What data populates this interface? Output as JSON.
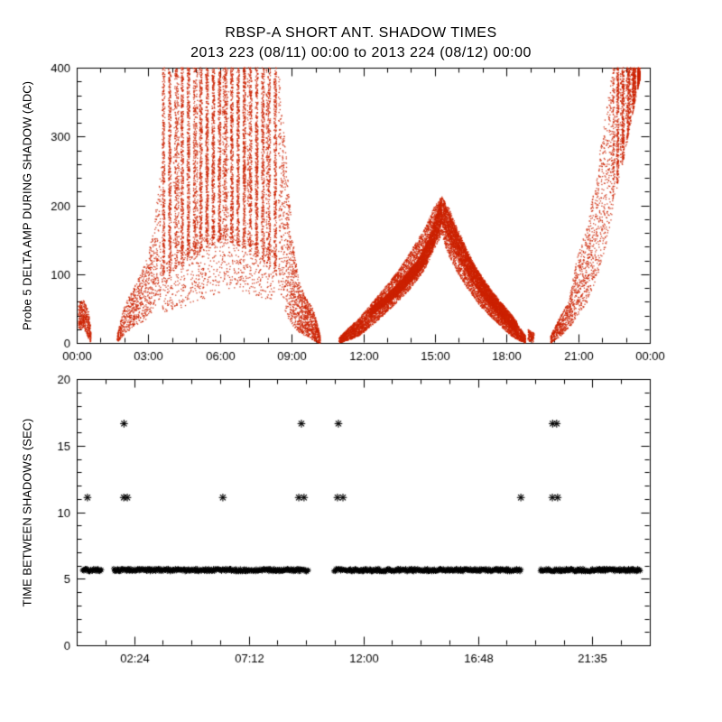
{
  "title": {
    "line1": "RBSP-A SHORT ANT. SHADOW TIMES",
    "line2": "2013 223 (08/11) 00:00 to 2013 224 (08/12) 00:00"
  },
  "colors": {
    "background": "#ffffff",
    "axis": "#000000",
    "scatter_red": "#cc2200",
    "scatter_black": "#000000"
  },
  "chart_data": [
    {
      "type": "scatter",
      "title": "RBSP-A SHORT ANT. SHADOW TIMES",
      "subtitle": "2013 223 (08/11) 00:00 to 2013 224 (08/12) 00:00",
      "xlabel": "",
      "ylabel": "Probe 5 DELTA AMP DURING SHADOW (ADC)",
      "xlim": [
        0,
        24
      ],
      "ylim": [
        0,
        400
      ],
      "grid": false,
      "xticks": {
        "values": [
          0,
          3,
          6,
          9,
          12,
          15,
          18,
          21,
          24
        ],
        "labels": [
          "00:00",
          "03:00",
          "06:00",
          "09:00",
          "12:00",
          "15:00",
          "18:00",
          "21:00",
          "00:00"
        ],
        "minor_step": 1
      },
      "yticks": {
        "values": [
          0,
          100,
          200,
          300,
          400
        ],
        "labels": [
          "0",
          "100",
          "200",
          "300",
          "400"
        ],
        "minor_step": 20
      },
      "marker": {
        "shape": "dot",
        "color": "#cc2200",
        "size": 1.3
      },
      "seed": 20130811,
      "clusters": [
        {
          "pph": 800,
          "env": [
            [
              0.08,
              18,
              60
            ],
            [
              0.3,
              22,
              62
            ],
            [
              0.5,
              5,
              45
            ],
            [
              0.6,
              0,
              15
            ]
          ]
        },
        {
          "pph": 450,
          "env": [
            [
              1.7,
              0,
              12
            ],
            [
              2.0,
              12,
              55
            ],
            [
              2.4,
              25,
              80
            ],
            [
              2.8,
              30,
              110
            ],
            [
              3.2,
              45,
              160
            ],
            [
              3.55,
              70,
              260
            ]
          ]
        },
        {
          "pph": 1500,
          "striate": {
            "period": 0.26,
            "jitter": 0.055
          },
          "env": [
            [
              3.55,
              85,
              400
            ],
            [
              4.2,
              110,
              400
            ],
            [
              5.0,
              130,
              400
            ],
            [
              6.2,
              150,
              400
            ],
            [
              7.2,
              135,
              400
            ],
            [
              8.0,
              115,
              400
            ],
            [
              8.45,
              95,
              400
            ]
          ]
        },
        {
          "pph": 160,
          "env": [
            [
              3.6,
              40,
              120
            ],
            [
              5.0,
              60,
              150
            ],
            [
              6.5,
              80,
              170
            ],
            [
              8.3,
              60,
              140
            ]
          ]
        },
        {
          "pph": 800,
          "env": [
            [
              8.45,
              80,
              400
            ],
            [
              8.65,
              55,
              330
            ],
            [
              8.85,
              35,
              240
            ],
            [
              9.05,
              25,
              150
            ],
            [
              9.3,
              15,
              90
            ],
            [
              9.6,
              10,
              65
            ],
            [
              9.9,
              4,
              50
            ],
            [
              10.1,
              0,
              25
            ],
            [
              10.2,
              0,
              10
            ]
          ]
        },
        {
          "pph": 900,
          "env": [
            [
              11.0,
              0,
              8
            ],
            [
              11.4,
              4,
              22
            ],
            [
              11.8,
              10,
              35
            ],
            [
              12.2,
              20,
              52
            ],
            [
              12.6,
              32,
              68
            ],
            [
              13.0,
              45,
              85
            ],
            [
              13.4,
              58,
              102
            ],
            [
              13.8,
              72,
              122
            ],
            [
              14.2,
              88,
              145
            ],
            [
              14.6,
              108,
              168
            ],
            [
              15.0,
              138,
              200
            ],
            [
              15.3,
              158,
              213
            ]
          ]
        },
        {
          "pph": 1300,
          "env": [
            [
              12.3,
              40,
              50
            ],
            [
              12.8,
              52,
              64
            ],
            [
              13.3,
              66,
              80
            ],
            [
              13.8,
              82,
              100
            ],
            [
              14.3,
              100,
              122
            ],
            [
              14.7,
              120,
              148
            ],
            [
              15.05,
              150,
              185
            ],
            [
              15.3,
              175,
              212
            ]
          ]
        },
        {
          "pph": 900,
          "env": [
            [
              15.3,
              155,
              213
            ],
            [
              15.6,
              125,
              195
            ],
            [
              15.9,
              105,
              170
            ],
            [
              16.2,
              88,
              148
            ],
            [
              16.5,
              72,
              125
            ],
            [
              16.8,
              58,
              105
            ],
            [
              17.1,
              46,
              88
            ],
            [
              17.4,
              36,
              72
            ],
            [
              17.7,
              26,
              58
            ],
            [
              18.0,
              16,
              46
            ],
            [
              18.3,
              8,
              34
            ],
            [
              18.6,
              2,
              20
            ],
            [
              18.8,
              0,
              10
            ]
          ]
        },
        {
          "pph": 1000,
          "env": [
            [
              15.35,
              170,
              210
            ],
            [
              15.7,
              140,
              180
            ],
            [
              16.1,
              115,
              150
            ],
            [
              16.5,
              92,
              122
            ],
            [
              16.9,
              72,
              100
            ],
            [
              17.3,
              55,
              80
            ],
            [
              17.7,
              40,
              62
            ],
            [
              18.1,
              25,
              46
            ],
            [
              18.45,
              12,
              30
            ]
          ]
        },
        {
          "pph": 500,
          "env": [
            [
              18.9,
              2,
              20
            ],
            [
              19.15,
              0,
              14
            ]
          ]
        },
        {
          "pph": 500,
          "env": [
            [
              19.85,
              0,
              10
            ],
            [
              20.2,
              8,
              35
            ],
            [
              20.6,
              20,
              60
            ],
            [
              21.0,
              40,
              130
            ],
            [
              21.4,
              60,
              170
            ],
            [
              21.8,
              95,
              250
            ],
            [
              22.15,
              140,
              330
            ],
            [
              22.45,
              190,
              400
            ]
          ]
        },
        {
          "pph": 1400,
          "striate": {
            "period": 0.22,
            "jitter": 0.05
          },
          "env": [
            [
              22.45,
              200,
              400
            ],
            [
              22.8,
              250,
              400
            ],
            [
              23.1,
              300,
              400
            ],
            [
              23.35,
              345,
              400
            ],
            [
              23.6,
              385,
              400
            ]
          ]
        }
      ]
    },
    {
      "type": "scatter",
      "title": "",
      "xlabel": "",
      "ylabel": "TIME BETWEEN SHADOWS (SEC)",
      "xlim": [
        0,
        24
      ],
      "ylim": [
        0,
        20
      ],
      "grid": false,
      "xticks": {
        "values": [
          2.4,
          7.2,
          12.0,
          16.8,
          21.583
        ],
        "labels": [
          "02:24",
          "07:12",
          "12:00",
          "16:48",
          "21:35"
        ],
        "minor_step": 1.2
      },
      "yticks": {
        "values": [
          0,
          5,
          10,
          15,
          20
        ],
        "labels": [
          "0",
          "5",
          "10",
          "15",
          "20"
        ],
        "minor_step": 1
      },
      "marker": {
        "shape": "asterisk",
        "color": "#000000",
        "size": 3,
        "outlier_size": 4.3
      },
      "seed": 2013224,
      "band": {
        "y": 5.65,
        "jitter": 0.12,
        "step_hours": 0.028,
        "segments": [
          [
            0.25,
            1.05
          ],
          [
            1.55,
            9.72
          ],
          [
            10.78,
            18.6
          ],
          [
            19.42,
            23.6
          ]
        ]
      },
      "outliers": [
        {
          "y": 11.1,
          "x": [
            0.45,
            1.97,
            2.12,
            6.12,
            9.3,
            9.52,
            10.92,
            11.15,
            18.6,
            19.92,
            20.14
          ]
        },
        {
          "y": 16.65,
          "x": [
            1.98,
            9.41,
            10.96,
            19.93,
            20.1
          ]
        }
      ]
    }
  ]
}
